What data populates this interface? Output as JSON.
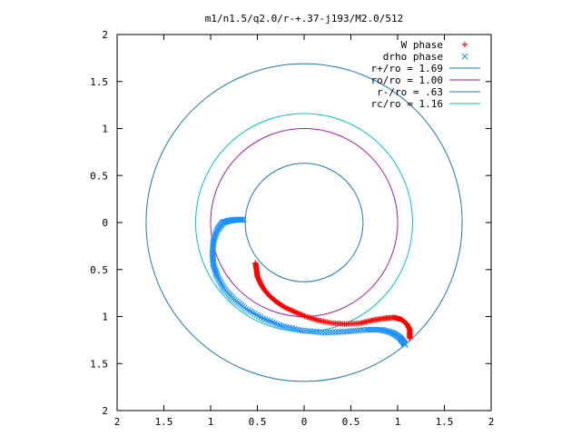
{
  "chart_data": {
    "type": "scatter",
    "title": "m1/n1.5/q2.0/r-+.37-j193/M2.0/512",
    "xlabel": "",
    "ylabel": "",
    "xlim": [
      -2,
      2
    ],
    "ylim": [
      -2,
      2
    ],
    "x_ticks": [
      {
        "value": -2,
        "label": "2"
      },
      {
        "value": -1.5,
        "label": "1.5"
      },
      {
        "value": -1,
        "label": "1"
      },
      {
        "value": -0.5,
        "label": "0.5"
      },
      {
        "value": 0,
        "label": "0"
      },
      {
        "value": 0.5,
        "label": "0.5"
      },
      {
        "value": 1,
        "label": "1"
      },
      {
        "value": 1.5,
        "label": "1.5"
      },
      {
        "value": 2,
        "label": "2"
      }
    ],
    "y_ticks": [
      {
        "value": 2,
        "label": "2"
      },
      {
        "value": 1.5,
        "label": "1.5"
      },
      {
        "value": 1,
        "label": "1"
      },
      {
        "value": 0.5,
        "label": "0.5"
      },
      {
        "value": 0,
        "label": "0"
      },
      {
        "value": -0.5,
        "label": "0.5"
      },
      {
        "value": -1,
        "label": "1"
      },
      {
        "value": -1.5,
        "label": "1.5"
      },
      {
        "value": -2,
        "label": "2"
      }
    ],
    "grid": false,
    "legend_position": "top-right",
    "circles": [
      {
        "name": "r+/ro = 1.69",
        "radius": 1.69,
        "color": "#1f78b4"
      },
      {
        "name": "ro/ro = 1.00",
        "radius": 1.0,
        "color": "#a020a0"
      },
      {
        "name": "r-/ro = .63",
        "radius": 0.63,
        "color": "#1f78b4"
      },
      {
        "name": "rc/ro = 1.16",
        "radius": 1.16,
        "color": "#00c8c8"
      }
    ],
    "series": [
      {
        "name": "W phase",
        "marker": "+",
        "color": "#ff0000",
        "points": [
          [
            -0.52,
            -0.43
          ],
          [
            -0.51,
            -0.5
          ],
          [
            -0.5,
            -0.57
          ],
          [
            -0.47,
            -0.64
          ],
          [
            -0.43,
            -0.71
          ],
          [
            -0.37,
            -0.78
          ],
          [
            -0.3,
            -0.84
          ],
          [
            -0.21,
            -0.9
          ],
          [
            -0.1,
            -0.95
          ],
          [
            0.02,
            -1.0
          ],
          [
            0.15,
            -1.04
          ],
          [
            0.3,
            -1.07
          ],
          [
            0.45,
            -1.08
          ],
          [
            0.6,
            -1.07
          ],
          [
            0.73,
            -1.04
          ],
          [
            0.85,
            -1.02
          ],
          [
            0.96,
            -1.01
          ],
          [
            1.04,
            -1.03
          ],
          [
            1.1,
            -1.08
          ],
          [
            1.13,
            -1.14
          ],
          [
            1.13,
            -1.19
          ],
          [
            1.13,
            -1.23
          ]
        ]
      },
      {
        "name": "drho phase",
        "marker": "x",
        "color": "#1e90ff",
        "points": [
          [
            -0.65,
            0.03
          ],
          [
            -0.72,
            0.03
          ],
          [
            -0.8,
            0.02
          ],
          [
            -0.87,
            0.0
          ],
          [
            -0.93,
            -0.08
          ],
          [
            -0.97,
            -0.2
          ],
          [
            -0.98,
            -0.33
          ],
          [
            -0.97,
            -0.45
          ],
          [
            -0.93,
            -0.57
          ],
          [
            -0.86,
            -0.7
          ],
          [
            -0.76,
            -0.81
          ],
          [
            -0.62,
            -0.92
          ],
          [
            -0.44,
            -1.02
          ],
          [
            -0.24,
            -1.1
          ],
          [
            -0.02,
            -1.15
          ],
          [
            0.22,
            -1.17
          ],
          [
            0.45,
            -1.16
          ],
          [
            0.66,
            -1.14
          ],
          [
            0.82,
            -1.14
          ],
          [
            0.94,
            -1.17
          ],
          [
            1.02,
            -1.22
          ],
          [
            1.06,
            -1.27
          ],
          [
            1.08,
            -1.3
          ]
        ]
      }
    ]
  }
}
